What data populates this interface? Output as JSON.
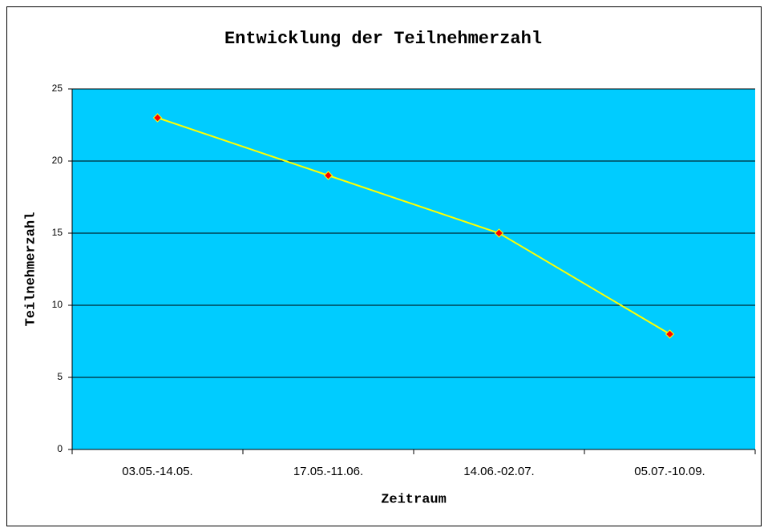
{
  "chart_data": {
    "type": "line",
    "title": "Entwicklung der Teilnehmerzahl",
    "x_label": "Zeitraum",
    "y_label": "Teilnehmerzahl",
    "categories": [
      "03.05.-14.05.",
      "17.05.-11.06.",
      "14.06.-02.07.",
      "05.07.-10.09."
    ],
    "series": [
      {
        "name": "Teilnehmerzahl",
        "color": "#ffff00",
        "marker_color": "#ff0000",
        "values": [
          23,
          19,
          15,
          8
        ]
      }
    ],
    "ylim": [
      0,
      25
    ],
    "yticks": [
      0,
      5,
      10,
      15,
      20,
      25
    ],
    "grid": true,
    "plot_background": "#00ccff",
    "legend": false
  }
}
